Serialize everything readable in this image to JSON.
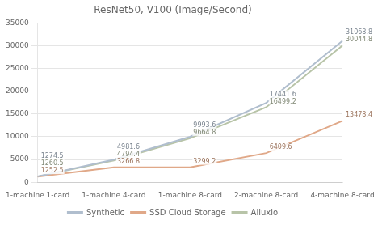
{
  "chart_data": {
    "type": "line",
    "title": "ResNet50, V100 (Image/Second)",
    "categories": [
      "1-machine 1-card",
      "1-machine 4-card",
      "1-machine 8-card",
      "2-machine 8-card",
      "4-machine 8-card"
    ],
    "series": [
      {
        "name": "Synthetic",
        "color": "#b0bece",
        "values": [
          1274.5,
          4981.6,
          9993.6,
          17441.6,
          31068.8
        ]
      },
      {
        "name": "SSD Cloud Storage",
        "color": "#e0a888",
        "values": [
          1252.5,
          3266.8,
          3299.2,
          6409.6,
          13478.4
        ]
      },
      {
        "name": "Alluxio",
        "color": "#b8c4a8",
        "values": [
          1260.5,
          4794.4,
          9664.8,
          16499.2,
          30044.8
        ]
      }
    ],
    "ylim": [
      0,
      35000
    ],
    "yticks": [
      0,
      5000,
      10000,
      15000,
      20000,
      25000,
      30000,
      35000
    ],
    "grid": true,
    "legend": "bottom",
    "data_labels": true
  }
}
